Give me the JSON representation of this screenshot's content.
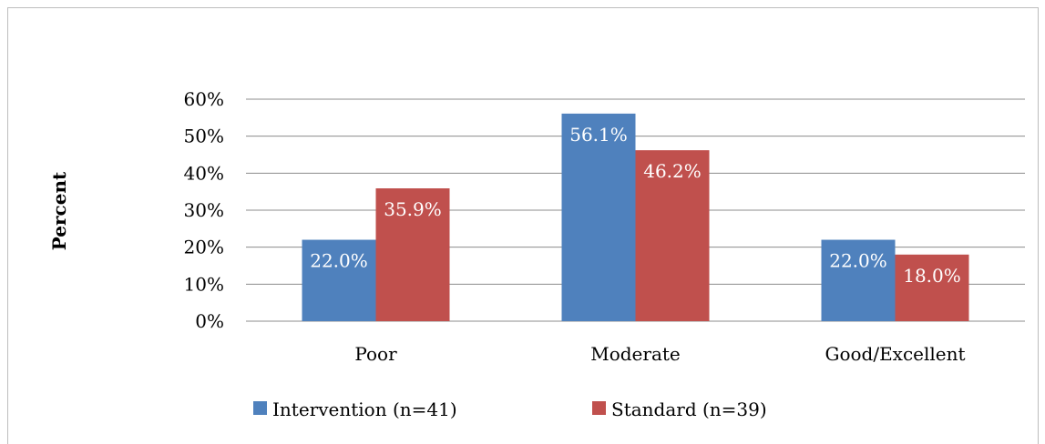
{
  "chart_data": {
    "type": "bar",
    "title": "",
    "xlabel": "",
    "ylabel": "Percent",
    "categories": [
      "Poor",
      "Moderate",
      "Good/Excellent"
    ],
    "series": [
      {
        "name": "Intervention (n=41)",
        "color": "#4F81BD",
        "values": [
          22.0,
          56.1,
          22.0
        ],
        "labels": [
          "22.0%",
          "56.1%",
          "22.0%"
        ]
      },
      {
        "name": "Standard (n=39)",
        "color": "#C0504D",
        "values": [
          35.9,
          46.2,
          18.0
        ],
        "labels": [
          "35.9%",
          "46.2%",
          "18.0%"
        ]
      }
    ],
    "ylim": [
      0,
      60
    ],
    "yticks": [
      0,
      10,
      20,
      30,
      40,
      50,
      60
    ],
    "ytick_labels": [
      "0%",
      "10%",
      "20%",
      "30%",
      "40%",
      "50%",
      "60%"
    ],
    "grid": true,
    "legend_position": "bottom"
  }
}
